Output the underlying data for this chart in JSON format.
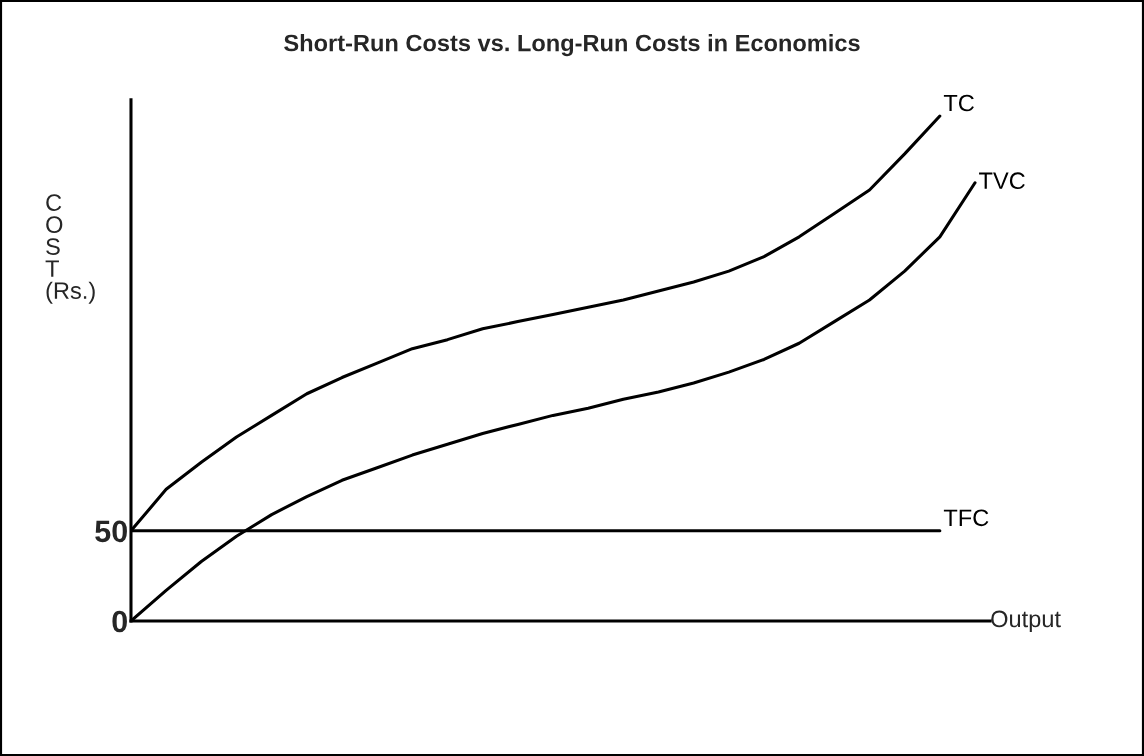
{
  "chart_data": {
    "type": "line",
    "title": "Short-Run Costs vs. Long-Run Costs in Economics",
    "xlabel": "Output",
    "ylabel": "C\nO\nS\nT\n(Rs.)",
    "categories": [
      null,
      null,
      null,
      null,
      null,
      null,
      null,
      null,
      null,
      null,
      null,
      null,
      null,
      null,
      null,
      null,
      null,
      null,
      null,
      null,
      null,
      null,
      null,
      null,
      null
    ],
    "series": [
      {
        "name": "TC",
        "color": "#000000",
        "values": [
          50,
          73,
          88,
          102,
          114,
          126,
          135,
          143,
          151,
          156,
          162,
          166,
          170,
          174,
          178,
          183,
          188,
          194,
          202,
          213,
          226,
          239,
          259,
          280,
          null
        ]
      },
      {
        "name": "TVC",
        "color": "#000000",
        "values": [
          0,
          17,
          33,
          47,
          59,
          69,
          78,
          85,
          92,
          98,
          104,
          109,
          114,
          118,
          123,
          127,
          132,
          138,
          145,
          154,
          166,
          178,
          194,
          213,
          243
        ]
      },
      {
        "name": "TFC",
        "color": "#000000",
        "values": [
          50,
          50,
          50,
          50,
          50,
          50,
          50,
          50,
          50,
          50,
          50,
          50,
          50,
          50,
          50,
          50,
          50,
          50,
          50,
          50,
          50,
          50,
          50,
          50,
          null
        ]
      }
    ],
    "ylim": [
      0,
      289
    ],
    "yticks": [
      0,
      50
    ],
    "grid": false,
    "legend": false,
    "marker": "none",
    "line_style": "solid"
  }
}
